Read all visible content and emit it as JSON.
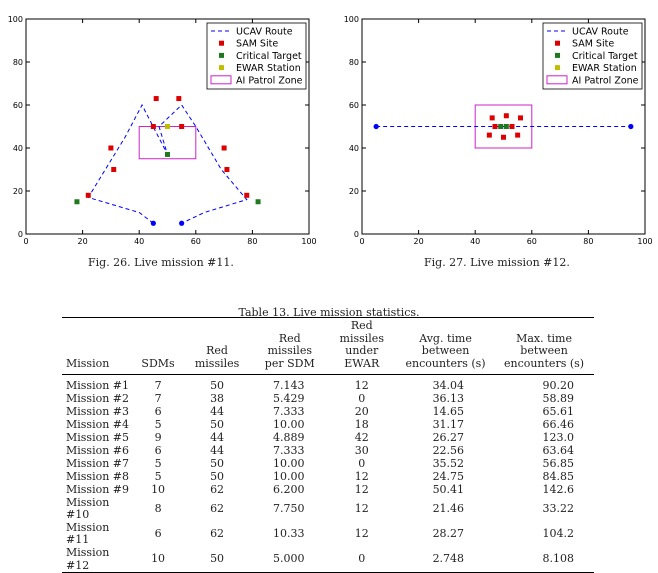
{
  "chart_data": [
    {
      "type": "scatter",
      "xlim": [
        0,
        100
      ],
      "ylim": [
        0,
        100
      ],
      "xticks": [
        "0",
        "20",
        "40",
        "60",
        "80",
        "100"
      ],
      "yticks": [
        "0",
        "20",
        "40",
        "60",
        "80",
        "100"
      ],
      "legend_position": "top-right",
      "legend": [
        "UCAV Route",
        "SAM Site",
        "Critical Target",
        "EWAR Station",
        "AI Patrol Zone"
      ],
      "colors": {
        "route": "#0000ff",
        "sam": "#dd0000",
        "target": "#1e7a1e",
        "ewar": "#bfbf00",
        "zone": "#cc22cc"
      },
      "routes": [
        {
          "x": [
            45,
            40,
            22,
            35,
            41,
            50,
            47,
            55,
            60,
            69,
            78,
            63,
            55
          ],
          "y": [
            5,
            10,
            17,
            45,
            60,
            37,
            50,
            60,
            50,
            30,
            16,
            10,
            5
          ]
        }
      ],
      "route_endpoints": {
        "x": [
          45,
          55
        ],
        "y": [
          5,
          5
        ]
      },
      "sam_sites": {
        "x": [
          46,
          54,
          30,
          70,
          45,
          55,
          31,
          71,
          22,
          78
        ],
        "y": [
          63,
          63,
          40,
          40,
          50,
          50,
          30,
          30,
          18,
          18
        ]
      },
      "critical_targets": {
        "x": [
          18,
          82,
          50
        ],
        "y": [
          15,
          15,
          37
        ]
      },
      "ewar_stations": {
        "x": [
          50
        ],
        "y": [
          50
        ]
      },
      "patrol_zone": {
        "x": [
          40,
          60
        ],
        "y": [
          35,
          50
        ]
      }
    },
    {
      "type": "scatter",
      "xlim": [
        0,
        100
      ],
      "ylim": [
        0,
        100
      ],
      "xticks": [
        "0",
        "20",
        "40",
        "60",
        "80",
        "100"
      ],
      "yticks": [
        "0",
        "20",
        "40",
        "60",
        "80",
        "100"
      ],
      "legend_position": "top-right",
      "legend": [
        "UCAV Route",
        "SAM Site",
        "Critical Target",
        "EWAR Station",
        "AI Patrol Zone"
      ],
      "colors": {
        "route": "#0000ff",
        "sam": "#dd0000",
        "target": "#1e7a1e",
        "ewar": "#bfbf00",
        "zone": "#cc22cc"
      },
      "routes": [
        {
          "x": [
            5,
            95
          ],
          "y": [
            50,
            50
          ]
        }
      ],
      "route_endpoints": {
        "x": [
          5,
          95
        ],
        "y": [
          50,
          50
        ]
      },
      "sam_sites": {
        "x": [
          46,
          51,
          56,
          45,
          47,
          53,
          55,
          50
        ],
        "y": [
          54,
          55,
          54,
          46,
          50,
          50,
          46,
          45
        ]
      },
      "critical_targets": {
        "x": [
          49,
          51
        ],
        "y": [
          50,
          50
        ]
      },
      "ewar_stations": {
        "x": [],
        "y": []
      },
      "patrol_zone": {
        "x": [
          40,
          60
        ],
        "y": [
          40,
          60
        ]
      }
    }
  ],
  "captions": {
    "fig26": "Fig. 26.   Live mission #11.",
    "fig27": "Fig. 27.   Live mission #12."
  },
  "table": {
    "caption": "Table 13.   Live mission statistics.",
    "headers": [
      "Mission",
      "SDMs",
      "Red missiles",
      "Red missiles per SDM",
      "Red missiles under EWAR",
      "Avg. time between encounters (s)",
      "Max. time between encounters (s)"
    ],
    "rows": [
      [
        "Mission #1",
        "7",
        "50",
        "7.143",
        "12",
        "34.04",
        "90.20"
      ],
      [
        "Mission #2",
        "7",
        "38",
        "5.429",
        "0",
        "36.13",
        "58.89"
      ],
      [
        "Mission #3",
        "6",
        "44",
        "7.333",
        "20",
        "14.65",
        "65.61"
      ],
      [
        "Mission #4",
        "5",
        "50",
        "10.00",
        "18",
        "31.17",
        "66.46"
      ],
      [
        "Mission #5",
        "9",
        "44",
        "4.889",
        "42",
        "26.27",
        "123.0"
      ],
      [
        "Mission #6",
        "6",
        "44",
        "7.333",
        "30",
        "22.56",
        "63.64"
      ],
      [
        "Mission #7",
        "5",
        "50",
        "10.00",
        "0",
        "35.52",
        "56.85"
      ],
      [
        "Mission #8",
        "5",
        "50",
        "10.00",
        "12",
        "24.75",
        "84.85"
      ],
      [
        "Mission #9",
        "10",
        "62",
        "6.200",
        "12",
        "50.41",
        "142.6"
      ],
      [
        "Mission #10",
        "8",
        "62",
        "7.750",
        "12",
        "21.46",
        "33.22"
      ],
      [
        "Mission #11",
        "6",
        "62",
        "10.33",
        "12",
        "28.27",
        "104.2"
      ],
      [
        "Mission #12",
        "10",
        "50",
        "5.000",
        "0",
        "2.748",
        "8.108"
      ]
    ]
  }
}
